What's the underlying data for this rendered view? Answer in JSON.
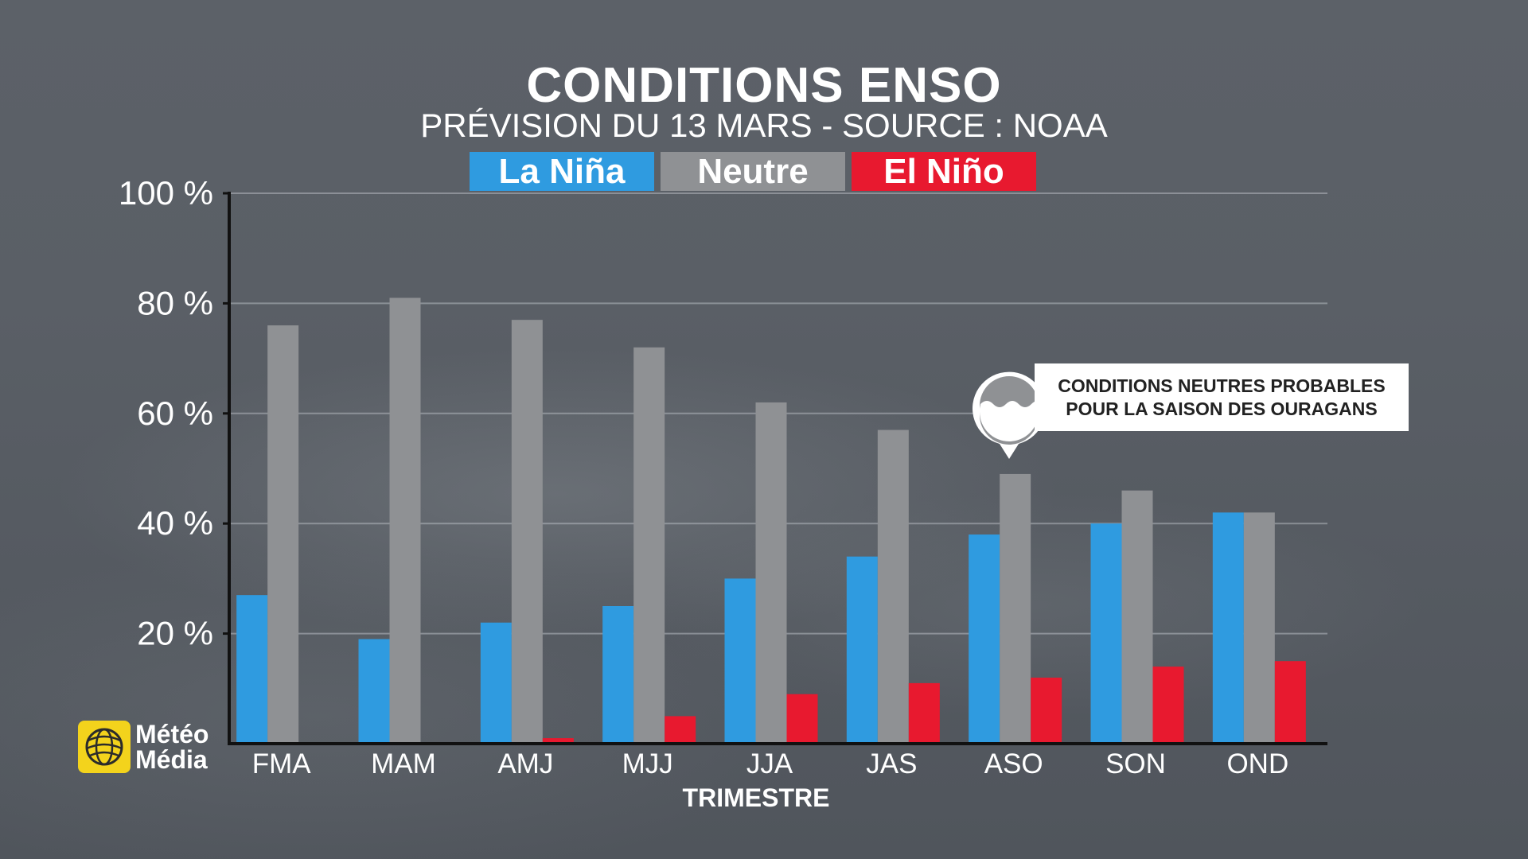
{
  "title": "CONDITIONS ENSO",
  "subtitle": "PRÉVISION DU 13 MARS - SOURCE : NOAA",
  "legend": [
    "La Niña",
    "Neutre",
    "El Niño"
  ],
  "colors": {
    "nina": "#2f9be0",
    "neutre": "#8f9194",
    "nino": "#e8192f"
  },
  "callout": {
    "line1": "CONDITIONS NEUTRES PROBABLES",
    "line2": "POUR LA SAISON DES OURAGANS",
    "icon": "wave-pin-icon"
  },
  "logo": {
    "line1": "Météo",
    "line2": "Média",
    "icon": "globe-icon"
  },
  "chart_data": {
    "type": "bar",
    "title": "CONDITIONS ENSO",
    "subtitle": "PRÉVISION DU 13 MARS - SOURCE : NOAA",
    "xlabel": "TRIMESTRE",
    "categories": [
      "FMA",
      "MAM",
      "AMJ",
      "MJJ",
      "JJA",
      "JAS",
      "ASO",
      "SON",
      "OND"
    ],
    "series": [
      {
        "name": "La Niña",
        "values": [
          27,
          19,
          22,
          25,
          30,
          34,
          38,
          40,
          42
        ]
      },
      {
        "name": "Neutre",
        "values": [
          76,
          81,
          77,
          72,
          62,
          57,
          49,
          46,
          42
        ]
      },
      {
        "name": "El Niño",
        "values": [
          0,
          0,
          1,
          5,
          9,
          11,
          12,
          14,
          15
        ]
      }
    ],
    "ylim": [
      0,
      100
    ],
    "yticks": [
      "20 %",
      "40 %",
      "60 %",
      "80 %",
      "100 %"
    ],
    "ytick_values": [
      20,
      40,
      60,
      80,
      100
    ],
    "grid": true,
    "legend_position": "top"
  }
}
